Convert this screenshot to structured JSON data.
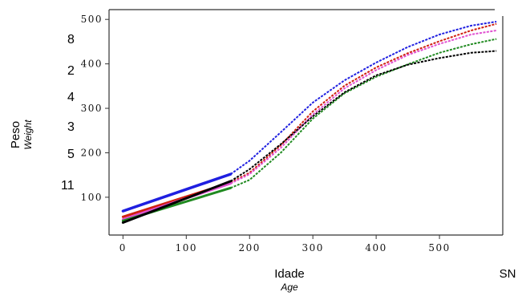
{
  "chart_data": {
    "type": "line",
    "title": "",
    "xlabel": "Idade",
    "xlabel_en": "Age",
    "ylabel": "Peso",
    "ylabel_en": "Weight",
    "x_ticks": [
      "0",
      "100",
      "200",
      "300",
      "400",
      "500"
    ],
    "y_ticks": [
      "100",
      "200",
      "300",
      "400",
      "500"
    ],
    "xlim": [
      -22,
      600
    ],
    "ylim": [
      15,
      522
    ],
    "grid": false,
    "legend": "none",
    "corner_label": "SN",
    "side_labels": [
      "8",
      "2",
      "4",
      "3",
      "5",
      "11"
    ],
    "series": [
      {
        "color": "#1f1fe0",
        "points": [
          [
            0,
            69
          ],
          [
            170,
            152
          ],
          [
            200,
            182
          ],
          [
            250,
            247
          ],
          [
            300,
            313
          ],
          [
            350,
            363
          ],
          [
            400,
            403
          ],
          [
            450,
            438
          ],
          [
            500,
            466
          ],
          [
            550,
            486
          ],
          [
            590,
            495
          ]
        ]
      },
      {
        "color": "#d02010",
        "points": [
          [
            0,
            56
          ],
          [
            170,
            133
          ],
          [
            200,
            155
          ],
          [
            250,
            218
          ],
          [
            300,
            293
          ],
          [
            350,
            351
          ],
          [
            400,
            392
          ],
          [
            450,
            424
          ],
          [
            500,
            451
          ],
          [
            550,
            475
          ],
          [
            590,
            490
          ]
        ]
      },
      {
        "color": "#e050d0",
        "points": [
          [
            0,
            50
          ],
          [
            170,
            131
          ],
          [
            200,
            152
          ],
          [
            250,
            212
          ],
          [
            300,
            286
          ],
          [
            350,
            345
          ],
          [
            400,
            386
          ],
          [
            450,
            420
          ],
          [
            500,
            445
          ],
          [
            550,
            466
          ],
          [
            590,
            475
          ]
        ]
      },
      {
        "color": "#208a20",
        "points": [
          [
            0,
            47
          ],
          [
            170,
            121
          ],
          [
            200,
            139
          ],
          [
            250,
            201
          ],
          [
            300,
            277
          ],
          [
            350,
            334
          ],
          [
            400,
            371
          ],
          [
            450,
            399
          ],
          [
            500,
            425
          ],
          [
            550,
            444
          ],
          [
            590,
            456
          ]
        ]
      },
      {
        "color": "#000000",
        "points": [
          [
            0,
            43
          ],
          [
            170,
            136
          ],
          [
            200,
            163
          ],
          [
            250,
            220
          ],
          [
            300,
            282
          ],
          [
            350,
            336
          ],
          [
            400,
            374
          ],
          [
            450,
            398
          ],
          [
            500,
            413
          ],
          [
            550,
            425
          ],
          [
            590,
            429
          ]
        ]
      }
    ]
  }
}
